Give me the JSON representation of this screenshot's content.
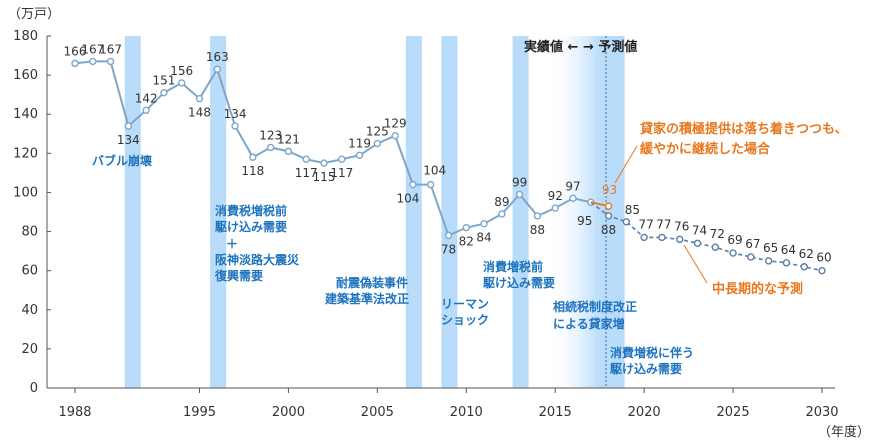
{
  "chart_data": {
    "type": "line",
    "ylabel": "（万戸）",
    "xlabel": "（年度）",
    "ylim": [
      0,
      180
    ],
    "xlim": [
      1988,
      2030
    ],
    "yticks": [
      "0",
      "20",
      "40",
      "60",
      "80",
      "100",
      "120",
      "140",
      "160",
      "180"
    ],
    "xticks": [
      "1988",
      "1995",
      "2000",
      "2005",
      "2010",
      "2015",
      "2020",
      "2025",
      "2030"
    ],
    "legend_actual_forecast": "実績値 ← → 予測値",
    "series": [
      {
        "name": "実績値",
        "points": [
          {
            "x": 1988,
            "y": 166
          },
          {
            "x": 1989,
            "y": 167
          },
          {
            "x": 1990,
            "y": 167
          },
          {
            "x": 1991,
            "y": 134
          },
          {
            "x": 1992,
            "y": 142
          },
          {
            "x": 1993,
            "y": 151
          },
          {
            "x": 1994,
            "y": 156
          },
          {
            "x": 1995,
            "y": 148
          },
          {
            "x": 1996,
            "y": 163
          },
          {
            "x": 1997,
            "y": 134
          },
          {
            "x": 1998,
            "y": 118
          },
          {
            "x": 1999,
            "y": 123
          },
          {
            "x": 2000,
            "y": 121
          },
          {
            "x": 2001,
            "y": 117
          },
          {
            "x": 2002,
            "y": 115
          },
          {
            "x": 2003,
            "y": 117
          },
          {
            "x": 2004,
            "y": 119
          },
          {
            "x": 2005,
            "y": 125
          },
          {
            "x": 2006,
            "y": 129
          },
          {
            "x": 2007,
            "y": 104
          },
          {
            "x": 2008,
            "y": 104
          },
          {
            "x": 2009,
            "y": 78
          },
          {
            "x": 2010,
            "y": 82
          },
          {
            "x": 2011,
            "y": 84
          },
          {
            "x": 2012,
            "y": 89
          },
          {
            "x": 2013,
            "y": 99
          },
          {
            "x": 2014,
            "y": 88
          },
          {
            "x": 2015,
            "y": 92
          },
          {
            "x": 2016,
            "y": 97
          },
          {
            "x": 2017,
            "y": 95
          }
        ]
      },
      {
        "name": "中長期的な予測",
        "points": [
          {
            "x": 2017,
            "y": 95
          },
          {
            "x": 2018,
            "y": 88
          },
          {
            "x": 2019,
            "y": 85
          },
          {
            "x": 2020,
            "y": 77
          },
          {
            "x": 2021,
            "y": 77
          },
          {
            "x": 2022,
            "y": 76
          },
          {
            "x": 2023,
            "y": 74
          },
          {
            "x": 2024,
            "y": 72
          },
          {
            "x": 2025,
            "y": 69
          },
          {
            "x": 2026,
            "y": 67
          },
          {
            "x": 2027,
            "y": 65
          },
          {
            "x": 2028,
            "y": 64
          },
          {
            "x": 2029,
            "y": 62
          },
          {
            "x": 2030,
            "y": 60
          }
        ]
      },
      {
        "name": "貸家の積極提供は落ち着きつつも、緩やかに継続した場合",
        "points": [
          {
            "x": 2017,
            "y": 95
          },
          {
            "x": 2018,
            "y": 93
          }
        ]
      }
    ],
    "shaded_periods": [
      {
        "from": 1990.8,
        "to": 1991.7
      },
      {
        "from": 1995.6,
        "to": 1996.5
      },
      {
        "from": 2006.6,
        "to": 2007.5
      },
      {
        "from": 2008.6,
        "to": 2009.5
      },
      {
        "from": 2012.6,
        "to": 2013.5
      },
      {
        "from": 2014.5,
        "to": 2017.5,
        "gradient": true
      },
      {
        "from": 2017.5,
        "to": 2018.9
      }
    ],
    "annotations": {
      "bubble": "バブル崩壊",
      "tax95_1": "消費税増税前",
      "tax95_2": "駆け込み需要",
      "plus": "＋",
      "quake_1": "阪神淡路大震災",
      "quake_2": "復興需要",
      "quake_3": "",
      "build_1": "耐震偽装事件",
      "build_2": "建築基準法改正",
      "lehman_1": "リーマン",
      "lehman_2": "ショック",
      "tax13_1": "消費増税前",
      "tax13_2": "駆け込み需要",
      "inherit_1": "相続税制度改正",
      "inherit_2": "による貸家増",
      "tax19_1": "消費増税に伴う",
      "tax19_2": "駆け込み需要",
      "scenario_1": "貸家の積極提供は落ち着きつつも、",
      "scenario_2": "緩やかに継続した場合",
      "forecast": "中長期的な予測"
    },
    "colors": {
      "actual_line": "#7ea6c9",
      "forecast_line": "#5a7fa6",
      "scenario": "#e8781e",
      "band": "#b9dcfb",
      "annotation": "#1e73be"
    }
  }
}
